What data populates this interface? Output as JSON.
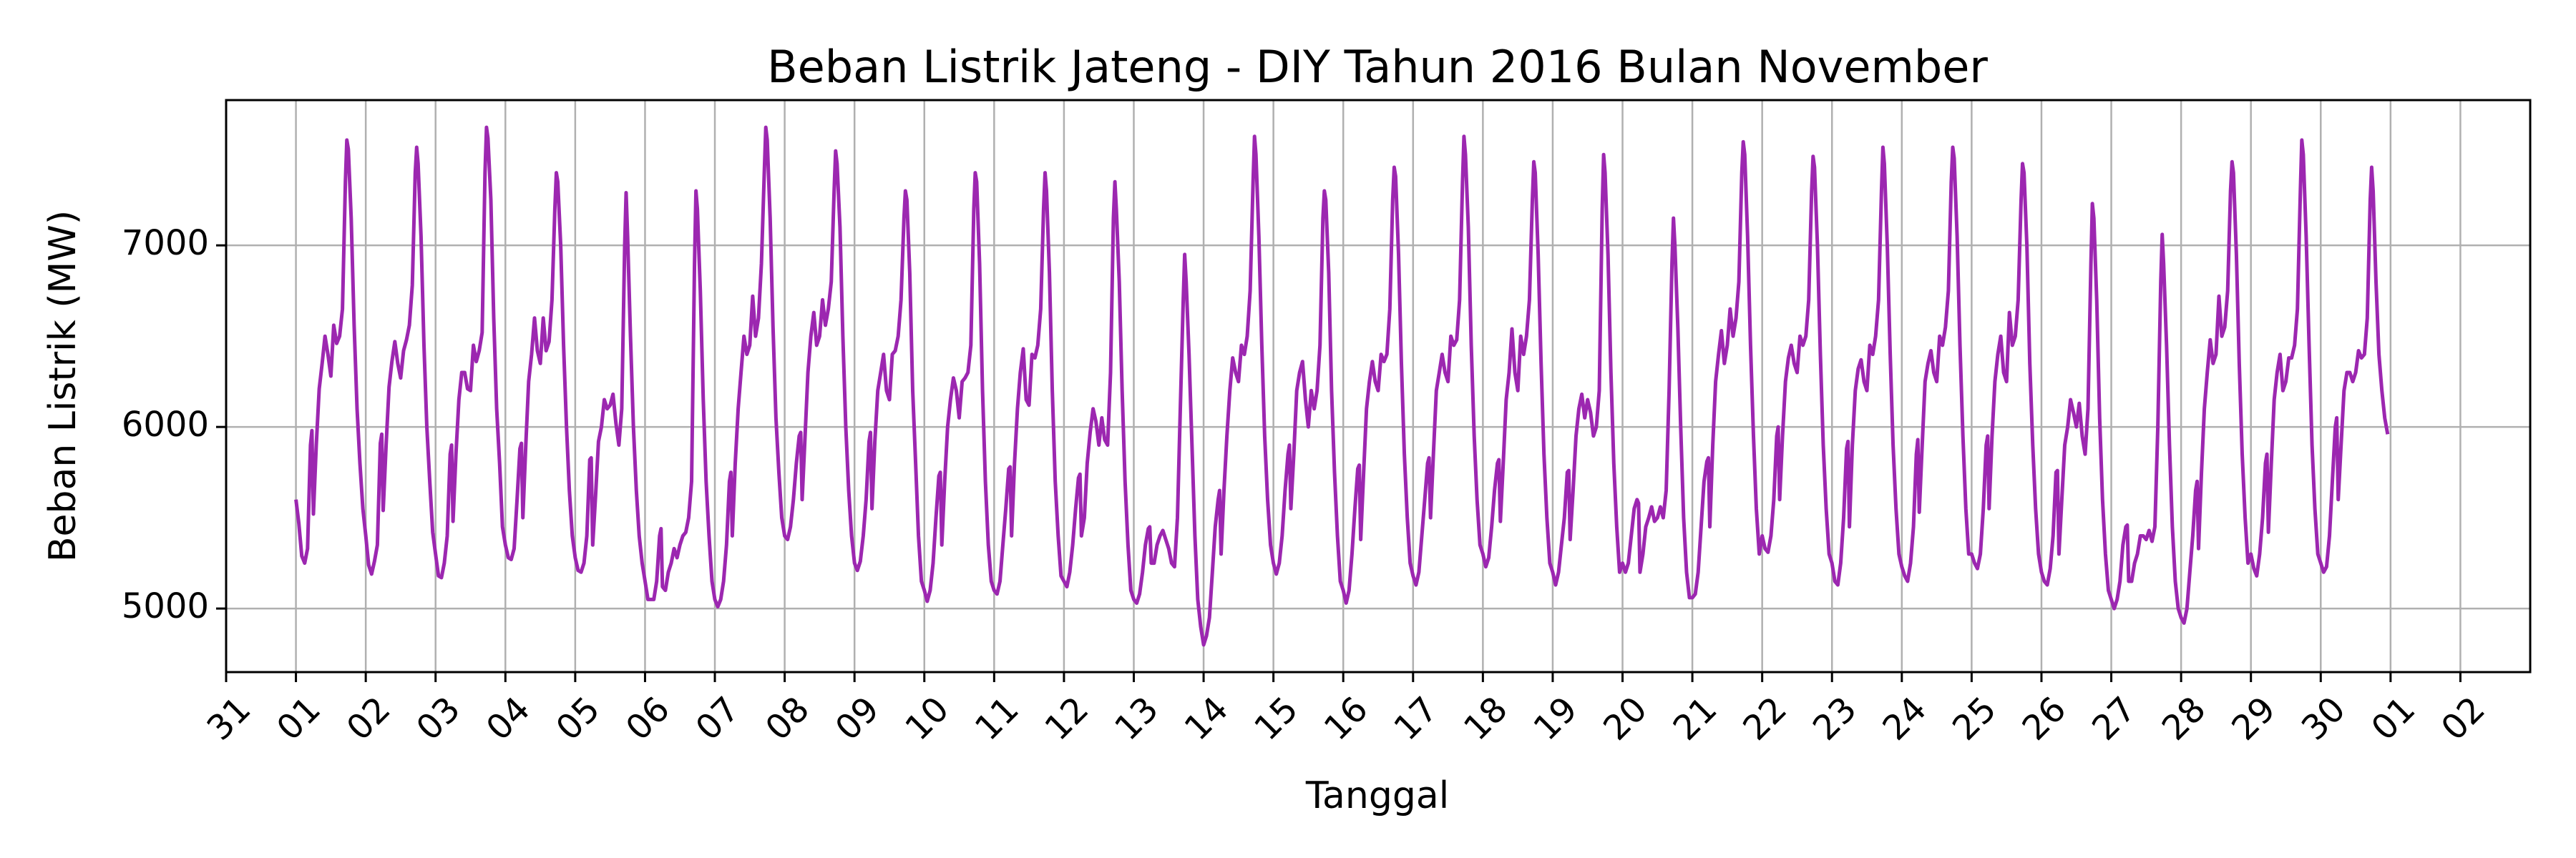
{
  "chart_data": {
    "type": "line",
    "title": "Beban Listrik Jateng - DIY Tahun 2016 Bulan November",
    "xlabel": "Tanggal",
    "ylabel": "Beban Listrik (MW)",
    "xlim": [
      -1,
      32
    ],
    "ylim": [
      4650,
      7800
    ],
    "x_ticks": [
      {
        "pos": -1,
        "label": "31"
      },
      {
        "pos": 0,
        "label": "01"
      },
      {
        "pos": 1,
        "label": "02"
      },
      {
        "pos": 2,
        "label": "03"
      },
      {
        "pos": 3,
        "label": "04"
      },
      {
        "pos": 4,
        "label": "05"
      },
      {
        "pos": 5,
        "label": "06"
      },
      {
        "pos": 6,
        "label": "07"
      },
      {
        "pos": 7,
        "label": "08"
      },
      {
        "pos": 8,
        "label": "09"
      },
      {
        "pos": 9,
        "label": "10"
      },
      {
        "pos": 10,
        "label": "11"
      },
      {
        "pos": 11,
        "label": "12"
      },
      {
        "pos": 12,
        "label": "13"
      },
      {
        "pos": 13,
        "label": "14"
      },
      {
        "pos": 14,
        "label": "15"
      },
      {
        "pos": 15,
        "label": "16"
      },
      {
        "pos": 16,
        "label": "17"
      },
      {
        "pos": 17,
        "label": "18"
      },
      {
        "pos": 18,
        "label": "19"
      },
      {
        "pos": 19,
        "label": "20"
      },
      {
        "pos": 20,
        "label": "21"
      },
      {
        "pos": 21,
        "label": "22"
      },
      {
        "pos": 22,
        "label": "23"
      },
      {
        "pos": 23,
        "label": "24"
      },
      {
        "pos": 24,
        "label": "25"
      },
      {
        "pos": 25,
        "label": "26"
      },
      {
        "pos": 26,
        "label": "27"
      },
      {
        "pos": 27,
        "label": "28"
      },
      {
        "pos": 28,
        "label": "29"
      },
      {
        "pos": 29,
        "label": "30"
      },
      {
        "pos": 30,
        "label": "01"
      },
      {
        "pos": 31,
        "label": "02"
      }
    ],
    "y_ticks": [
      {
        "value": 5000,
        "label": "5000"
      },
      {
        "value": 6000,
        "label": "6000"
      },
      {
        "value": 7000,
        "label": "7000"
      }
    ],
    "grid": true,
    "line_color": "#9c27b0",
    "daily_profile_hours": [
      0,
      1,
      2,
      3,
      4,
      5,
      5.5,
      6,
      7,
      8,
      9,
      10,
      11,
      12,
      13,
      14,
      15,
      16,
      17,
      17.5,
      18,
      19,
      20,
      21,
      22,
      23
    ],
    "days": [
      {
        "date": "01",
        "peak": 7580,
        "valley": 5250,
        "values": [
          5600,
          5470,
          5290,
          5250,
          5330,
          5900,
          5980,
          5520,
          5900,
          6210,
          6350,
          6500,
          6400,
          6280,
          6560,
          6460,
          6500,
          6650,
          7350,
          7580,
          7530,
          7150,
          6560,
          6100,
          5800,
          5550
        ]
      },
      {
        "date": "02",
        "peak": 7540,
        "valley": 5190,
        "values": [
          5400,
          5240,
          5190,
          5260,
          5350,
          5910,
          5960,
          5540,
          5900,
          6220,
          6360,
          6470,
          6350,
          6270,
          6420,
          6480,
          6560,
          6780,
          7400,
          7540,
          7450,
          7050,
          6450,
          6000,
          5700,
          5420
        ]
      },
      {
        "date": "03",
        "peak": 7650,
        "valley": 5170,
        "values": [
          5300,
          5180,
          5170,
          5250,
          5400,
          5850,
          5900,
          5480,
          5850,
          6150,
          6300,
          6300,
          6210,
          6200,
          6450,
          6360,
          6420,
          6520,
          7400,
          7650,
          7590,
          7250,
          6600,
          6100,
          5800,
          5450
        ]
      },
      {
        "date": "04",
        "peak": 7400,
        "valley": 5270,
        "values": [
          5350,
          5280,
          5270,
          5330,
          5600,
          5880,
          5910,
          5500,
          5900,
          6250,
          6400,
          6600,
          6420,
          6350,
          6600,
          6420,
          6470,
          6700,
          7200,
          7400,
          7350,
          7000,
          6450,
          6000,
          5650,
          5400
        ]
      },
      {
        "date": "05",
        "peak": 7290,
        "valley": 5200,
        "values": [
          5280,
          5210,
          5200,
          5250,
          5400,
          5820,
          5830,
          5350,
          5620,
          5920,
          6000,
          6150,
          6100,
          6120,
          6180,
          6020,
          5900,
          6100,
          7000,
          7290,
          7050,
          6500,
          6000,
          5650,
          5400,
          5250
        ]
      },
      {
        "date": "06",
        "peak": 7300,
        "valley": 5010,
        "values": [
          5150,
          5050,
          5050,
          5050,
          5150,
          5400,
          5440,
          5120,
          5100,
          5200,
          5250,
          5330,
          5280,
          5350,
          5400,
          5420,
          5500,
          5700,
          6900,
          7300,
          7200,
          6750,
          6150,
          5700,
          5400,
          5150
        ]
      },
      {
        "date": "07",
        "peak": 7650,
        "valley": 5010,
        "values": [
          5050,
          5010,
          5050,
          5150,
          5350,
          5700,
          5750,
          5400,
          5800,
          6100,
          6300,
          6500,
          6400,
          6450,
          6720,
          6500,
          6600,
          6900,
          7400,
          7650,
          7580,
          7150,
          6550,
          6050,
          5750,
          5500
        ]
      },
      {
        "date": "08",
        "peak": 7520,
        "valley": 5250,
        "values": [
          5400,
          5380,
          5450,
          5600,
          5800,
          5950,
          5970,
          5600,
          5950,
          6300,
          6500,
          6630,
          6450,
          6500,
          6700,
          6560,
          6650,
          6800,
          7300,
          7520,
          7450,
          7100,
          6500,
          6000,
          5650,
          5400
        ]
      },
      {
        "date": "09",
        "peak": 7300,
        "valley": 5040,
        "values": [
          5250,
          5210,
          5260,
          5400,
          5600,
          5920,
          5970,
          5550,
          5920,
          6200,
          6300,
          6400,
          6200,
          6150,
          6400,
          6420,
          6500,
          6700,
          7150,
          7300,
          7250,
          6850,
          6200,
          5800,
          5400,
          5150
        ]
      },
      {
        "date": "10",
        "peak": 7400,
        "valley": 5040,
        "values": [
          5100,
          5040,
          5100,
          5250,
          5500,
          5730,
          5750,
          5350,
          5700,
          6000,
          6150,
          6270,
          6200,
          6050,
          6250,
          6270,
          6300,
          6450,
          7200,
          7400,
          7350,
          6900,
          6200,
          5700,
          5350,
          5150
        ]
      },
      {
        "date": "11",
        "peak": 7400,
        "valley": 5080,
        "values": [
          5100,
          5080,
          5150,
          5350,
          5550,
          5770,
          5780,
          5400,
          5800,
          6100,
          6300,
          6430,
          6150,
          6120,
          6400,
          6380,
          6450,
          6650,
          7200,
          7400,
          7300,
          6850,
          6200,
          5700,
          5400,
          5180
        ]
      },
      {
        "date": "12",
        "peak": 7350,
        "valley": 5030,
        "values": [
          5150,
          5120,
          5200,
          5350,
          5550,
          5720,
          5740,
          5400,
          5500,
          5800,
          5970,
          6100,
          6030,
          5900,
          6050,
          5930,
          5900,
          6300,
          7150,
          7350,
          7200,
          6800,
          6200,
          5700,
          5350,
          5100
        ]
      },
      {
        "date": "13",
        "peak": 6950,
        "valley": 4800,
        "values": [
          5050,
          5030,
          5080,
          5200,
          5350,
          5440,
          5450,
          5250,
          5250,
          5350,
          5400,
          5430,
          5380,
          5330,
          5250,
          5230,
          5500,
          6100,
          6700,
          6950,
          6800,
          6400,
          5900,
          5400,
          5050,
          4900
        ]
      },
      {
        "date": "14",
        "peak": 7600,
        "valley": 4800,
        "values": [
          4800,
          4850,
          4950,
          5200,
          5450,
          5600,
          5650,
          5300,
          5650,
          5950,
          6200,
          6380,
          6300,
          6250,
          6450,
          6400,
          6500,
          6750,
          7350,
          7600,
          7500,
          7050,
          6450,
          5950,
          5600,
          5350
        ]
      },
      {
        "date": "15",
        "peak": 7300,
        "valley": 5190,
        "values": [
          5250,
          5190,
          5250,
          5400,
          5650,
          5850,
          5900,
          5550,
          5850,
          6200,
          6300,
          6360,
          6150,
          6000,
          6200,
          6100,
          6200,
          6450,
          7150,
          7300,
          7250,
          6850,
          6200,
          5750,
          5400,
          5150
        ]
      },
      {
        "date": "16",
        "peak": 7430,
        "valley": 5030,
        "values": [
          5100,
          5030,
          5100,
          5300,
          5550,
          5770,
          5790,
          5380,
          5750,
          6100,
          6250,
          6360,
          6250,
          6200,
          6400,
          6360,
          6400,
          6650,
          7250,
          7430,
          7380,
          6950,
          6350,
          5850,
          5500,
          5250
        ]
      },
      {
        "date": "17",
        "peak": 7600,
        "valley": 5130,
        "values": [
          5180,
          5130,
          5200,
          5400,
          5600,
          5800,
          5830,
          5500,
          5850,
          6200,
          6300,
          6400,
          6300,
          6250,
          6500,
          6450,
          6480,
          6700,
          7350,
          7600,
          7500,
          7100,
          6450,
          5950,
          5600,
          5350
        ]
      },
      {
        "date": "18",
        "peak": 7460,
        "valley": 5230,
        "values": [
          5300,
          5230,
          5280,
          5450,
          5650,
          5800,
          5820,
          5480,
          5800,
          6150,
          6300,
          6540,
          6300,
          6200,
          6500,
          6400,
          6500,
          6700,
          7250,
          7460,
          7400,
          6950,
          6350,
          5850,
          5500,
          5250
        ]
      },
      {
        "date": "19",
        "peak": 7500,
        "valley": 5130,
        "values": [
          5200,
          5130,
          5200,
          5350,
          5500,
          5750,
          5760,
          5380,
          5650,
          5950,
          6100,
          6180,
          6050,
          6150,
          6080,
          5950,
          6000,
          6200,
          7200,
          7500,
          7400,
          6950,
          6300,
          5800,
          5450,
          5200
        ]
      },
      {
        "date": "20",
        "peak": 7150,
        "valley": 5060,
        "values": [
          5250,
          5200,
          5250,
          5400,
          5550,
          5600,
          5580,
          5200,
          5300,
          5450,
          5500,
          5560,
          5480,
          5500,
          5560,
          5500,
          5650,
          6200,
          6900,
          7150,
          7000,
          6550,
          6000,
          5500,
          5200,
          5060
        ]
      },
      {
        "date": "21",
        "peak": 7570,
        "valley": 5060,
        "values": [
          5060,
          5080,
          5200,
          5450,
          5700,
          5810,
          5830,
          5450,
          5900,
          6250,
          6400,
          6530,
          6350,
          6450,
          6650,
          6500,
          6600,
          6800,
          7400,
          7570,
          7500,
          7050,
          6450,
          5950,
          5550,
          5300
        ]
      },
      {
        "date": "22",
        "peak": 7490,
        "valley": 5310,
        "values": [
          5400,
          5330,
          5310,
          5400,
          5600,
          5950,
          6000,
          5600,
          5950,
          6250,
          6380,
          6450,
          6350,
          6300,
          6500,
          6450,
          6500,
          6700,
          7300,
          7490,
          7430,
          7000,
          6400,
          5900,
          5550,
          5300
        ]
      },
      {
        "date": "23",
        "peak": 7540,
        "valley": 5130,
        "values": [
          5250,
          5150,
          5130,
          5250,
          5500,
          5880,
          5920,
          5450,
          5900,
          6200,
          6320,
          6370,
          6250,
          6200,
          6450,
          6400,
          6500,
          6700,
          7300,
          7540,
          7450,
          7000,
          6400,
          5900,
          5550,
          5300
        ]
      },
      {
        "date": "24",
        "peak": 7540,
        "valley": 5150,
        "values": [
          5230,
          5180,
          5150,
          5250,
          5450,
          5850,
          5930,
          5530,
          5900,
          6250,
          6350,
          6420,
          6300,
          6250,
          6500,
          6450,
          6550,
          6750,
          7350,
          7540,
          7480,
          7050,
          6450,
          5950,
          5550,
          5300
        ]
      },
      {
        "date": "25",
        "peak": 7450,
        "valley": 5220,
        "values": [
          5300,
          5250,
          5220,
          5300,
          5550,
          5900,
          5950,
          5550,
          5950,
          6250,
          6400,
          6500,
          6300,
          6250,
          6630,
          6450,
          6500,
          6700,
          7250,
          7450,
          7400,
          7000,
          6350,
          5900,
          5550,
          5300
        ]
      },
      {
        "date": "26",
        "peak": 7230,
        "valley": 5130,
        "values": [
          5200,
          5150,
          5130,
          5220,
          5400,
          5750,
          5760,
          5300,
          5600,
          5900,
          6000,
          6150,
          6080,
          6000,
          6130,
          5950,
          5850,
          6100,
          6900,
          7230,
          7150,
          6700,
          6050,
          5600,
          5300,
          5100
        ]
      },
      {
        "date": "27",
        "peak": 7060,
        "valley": 5000,
        "values": [
          5050,
          5000,
          5050,
          5150,
          5350,
          5450,
          5460,
          5150,
          5150,
          5250,
          5300,
          5400,
          5400,
          5380,
          5430,
          5370,
          5450,
          6000,
          6800,
          7060,
          6900,
          6450,
          5900,
          5450,
          5150,
          5000
        ]
      },
      {
        "date": "28",
        "peak": 7460,
        "valley": 4920,
        "values": [
          4950,
          4920,
          5000,
          5200,
          5400,
          5650,
          5700,
          5330,
          5750,
          6100,
          6300,
          6480,
          6350,
          6400,
          6720,
          6500,
          6550,
          6750,
          7300,
          7460,
          7400,
          6950,
          6350,
          5850,
          5500,
          5250
        ]
      },
      {
        "date": "29",
        "peak": 7580,
        "valley": 5180,
        "values": [
          5300,
          5220,
          5180,
          5300,
          5500,
          5800,
          5850,
          5420,
          5800,
          6150,
          6300,
          6400,
          6200,
          6250,
          6380,
          6380,
          6450,
          6650,
          7300,
          7580,
          7500,
          7050,
          6450,
          5900,
          5550,
          5300
        ]
      },
      {
        "date": "30",
        "peak": 7430,
        "valley": 5200,
        "values": [
          5250,
          5200,
          5230,
          5400,
          5700,
          6000,
          6050,
          5600,
          5900,
          6200,
          6300,
          6300,
          6250,
          6300,
          6420,
          6380,
          6400,
          6600,
          7250,
          7430,
          7300,
          6800,
          6400,
          6200,
          6050,
          5960
        ]
      }
    ]
  }
}
